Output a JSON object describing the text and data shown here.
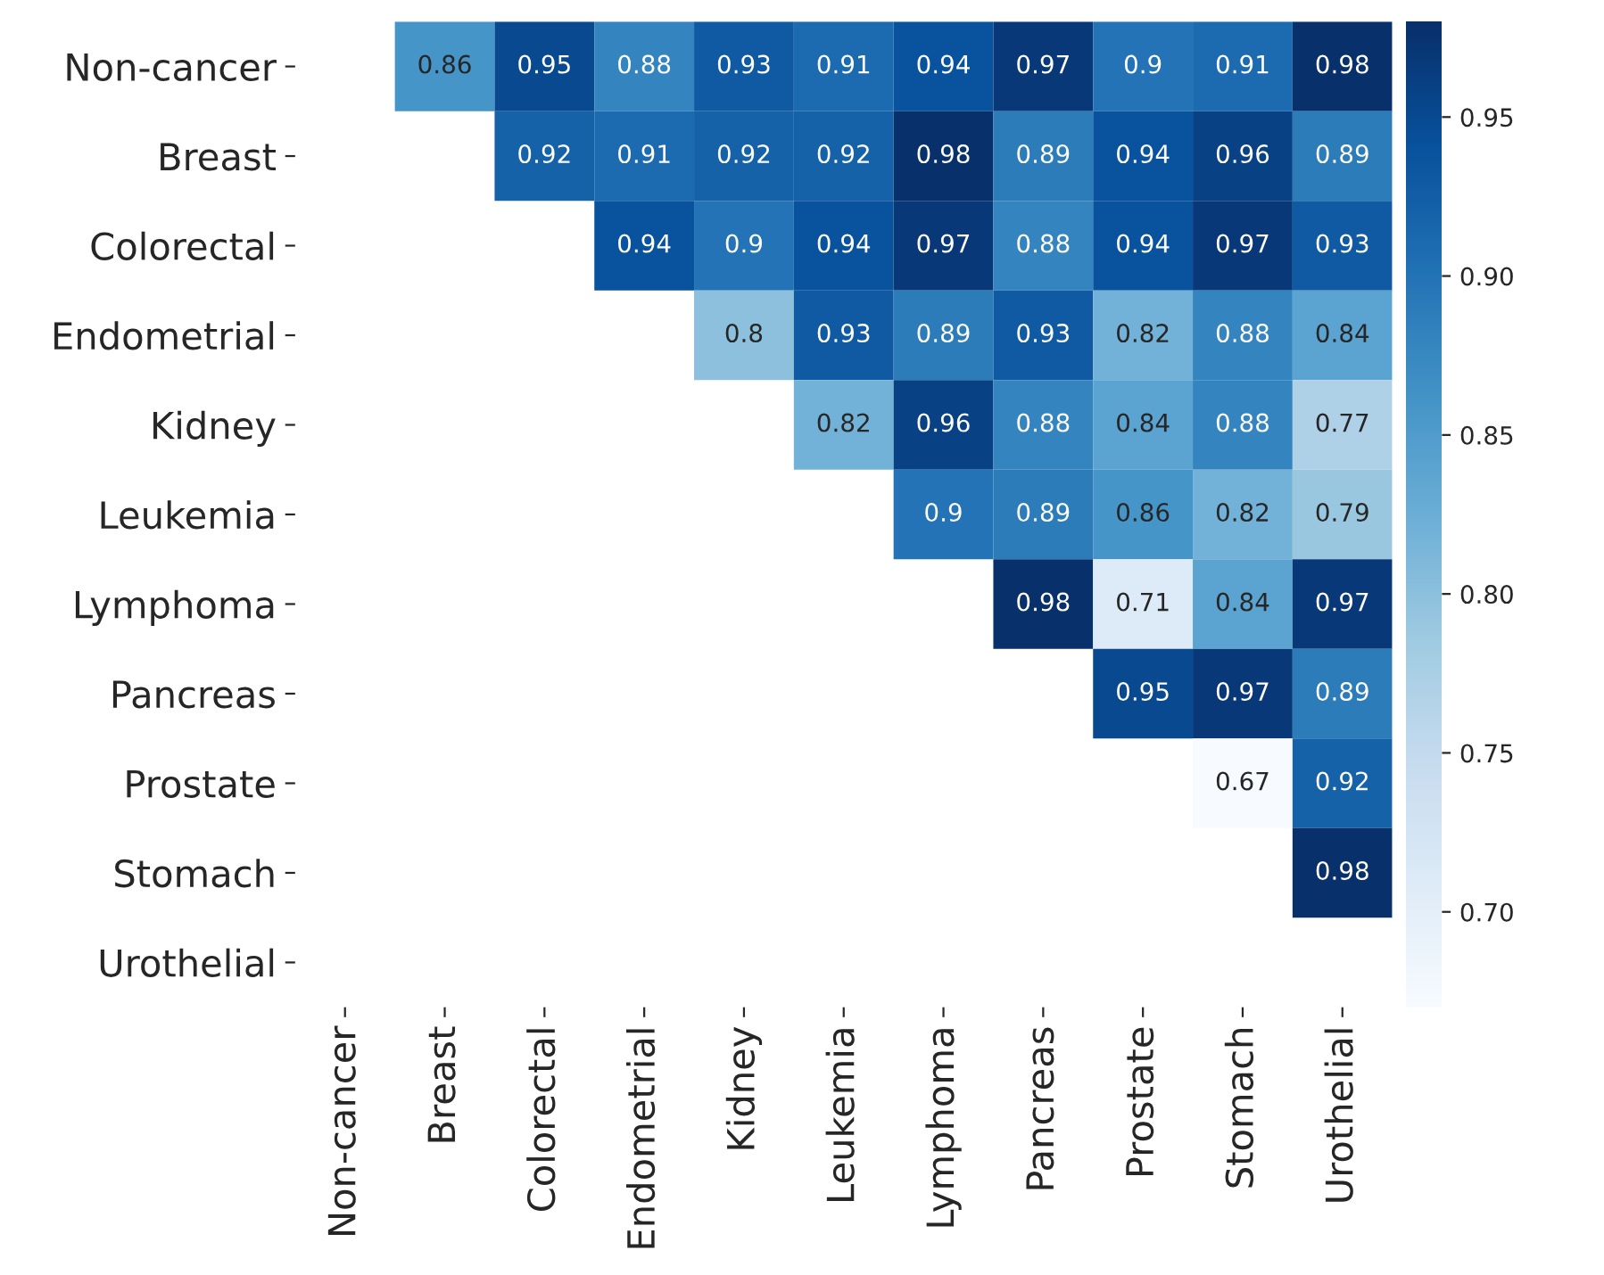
{
  "chart_data": {
    "type": "heatmap",
    "categories": [
      "Non-cancer",
      "Breast",
      "Colorectal",
      "Endometrial",
      "Kidney",
      "Leukemia",
      "Lymphoma",
      "Pancreas",
      "Prostate",
      "Stomach",
      "Urothelial"
    ],
    "y_categories": [
      "Non-cancer",
      "Breast",
      "Colorectal",
      "Endometrial",
      "Kidney",
      "Leukemia",
      "Lymphoma",
      "Pancreas",
      "Prostate",
      "Stomach",
      "Urothelial"
    ],
    "cells": [
      [
        null,
        0.86,
        0.95,
        0.88,
        0.93,
        0.91,
        0.94,
        0.97,
        0.9,
        0.91,
        0.98
      ],
      [
        null,
        null,
        0.92,
        0.91,
        0.92,
        0.92,
        0.98,
        0.89,
        0.94,
        0.96,
        0.89
      ],
      [
        null,
        null,
        null,
        0.94,
        0.9,
        0.94,
        0.97,
        0.88,
        0.94,
        0.97,
        0.93
      ],
      [
        null,
        null,
        null,
        null,
        0.8,
        0.93,
        0.89,
        0.93,
        0.82,
        0.88,
        0.84
      ],
      [
        null,
        null,
        null,
        null,
        null,
        0.82,
        0.96,
        0.88,
        0.84,
        0.88,
        0.77
      ],
      [
        null,
        null,
        null,
        null,
        null,
        null,
        0.9,
        0.89,
        0.86,
        0.82,
        0.79
      ],
      [
        null,
        null,
        null,
        null,
        null,
        null,
        null,
        0.98,
        0.71,
        0.84,
        0.97
      ],
      [
        null,
        null,
        null,
        null,
        null,
        null,
        null,
        null,
        0.95,
        0.97,
        0.89
      ],
      [
        null,
        null,
        null,
        null,
        null,
        null,
        null,
        null,
        null,
        0.67,
        0.92
      ],
      [
        null,
        null,
        null,
        null,
        null,
        null,
        null,
        null,
        null,
        null,
        0.98
      ],
      [
        null,
        null,
        null,
        null,
        null,
        null,
        null,
        null,
        null,
        null,
        null
      ]
    ],
    "clim": [
      0.67,
      0.98
    ],
    "cticks": [
      {
        "value": 0.7,
        "label": "0.70"
      },
      0.75,
      {
        "value": 0.8,
        "label": "0.80"
      },
      0.85,
      {
        "value": 0.9,
        "label": "0.90"
      },
      0.95
    ],
    "data_labels": true
  }
}
